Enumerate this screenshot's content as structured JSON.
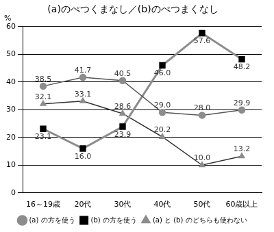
{
  "chart_data": {
    "type": "line",
    "title": "(a)のぺつくまなし／(b)のぺつまくなし",
    "ylabel": "%",
    "categories": [
      "16～19歳",
      "20代",
      "30代",
      "40代",
      "50代",
      "60歳以上"
    ],
    "series": [
      {
        "name": "(a) の方を使う",
        "color": "#555555",
        "marker": "circle",
        "line_style": "solid",
        "values": [
          38.5,
          41.7,
          40.5,
          29.0,
          28.0,
          29.9
        ],
        "value_labels": [
          "38.5",
          "41.7",
          "40.5",
          "29.0",
          "28.0",
          "29.9"
        ]
      },
      {
        "name": "(b) の方を使う",
        "color": "#8c8c8c",
        "marker": "square",
        "line_style": "solid",
        "values": [
          23.1,
          16.0,
          23.9,
          46.0,
          57.6,
          48.2
        ],
        "value_labels": [
          "23.1",
          "16.0",
          "23.9",
          "46.0",
          "57.6",
          "48.2"
        ]
      },
      {
        "name": "(a) と (b) のどちらも使わない",
        "color": "#333333",
        "marker": "triangle",
        "line_style": "solid",
        "values": [
          32.1,
          33.1,
          28.6,
          20.2,
          10.0,
          13.2
        ],
        "value_labels": [
          "32.1",
          "33.1",
          "28.6",
          "20.2",
          "10.0",
          "13.2"
        ]
      }
    ],
    "ylim": [
      0,
      60
    ],
    "yticks": [
      0,
      10,
      20,
      30,
      40,
      50,
      60
    ],
    "grid": true,
    "legend": "bottom",
    "data_labels": true
  }
}
